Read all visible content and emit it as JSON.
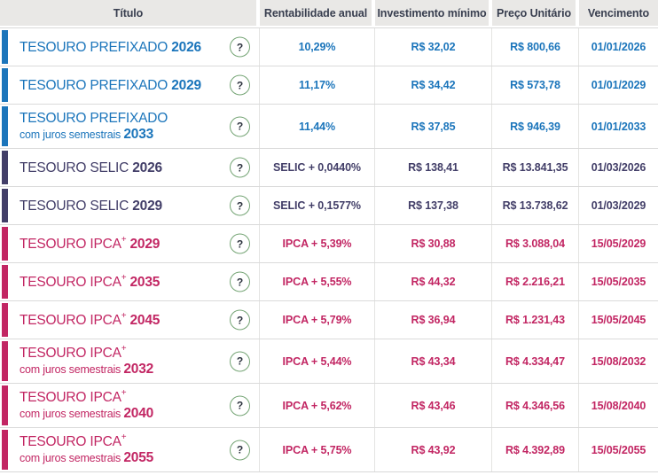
{
  "table": {
    "columns": [
      {
        "label": "Título"
      },
      {
        "label": "Rentabilidade anual"
      },
      {
        "label": "Investimento mínimo"
      },
      {
        "label": "Preço Unitário"
      },
      {
        "label": "Vencimento"
      }
    ],
    "rows": [
      {
        "theme": "prefixado",
        "name": "TESOURO PREFIXADO",
        "sup": "",
        "subtitle": "",
        "year": "2026",
        "rate": "10,29%",
        "min_investment": "R$ 32,02",
        "unit_price": "R$ 800,66",
        "maturity": "01/01/2026"
      },
      {
        "theme": "prefixado",
        "name": "TESOURO PREFIXADO",
        "sup": "",
        "subtitle": "",
        "year": "2029",
        "rate": "11,17%",
        "min_investment": "R$ 34,42",
        "unit_price": "R$ 573,78",
        "maturity": "01/01/2029"
      },
      {
        "theme": "prefixado",
        "name": "TESOURO PREFIXADO",
        "sup": "",
        "subtitle": "com juros semestrais",
        "year": "2033",
        "rate": "11,44%",
        "min_investment": "R$ 37,85",
        "unit_price": "R$ 946,39",
        "maturity": "01/01/2033"
      },
      {
        "theme": "selic",
        "name": "TESOURO SELIC",
        "sup": "",
        "subtitle": "",
        "year": "2026",
        "rate": "SELIC + 0,0440%",
        "min_investment": "R$ 138,41",
        "unit_price": "R$ 13.841,35",
        "maturity": "01/03/2026"
      },
      {
        "theme": "selic",
        "name": "TESOURO SELIC",
        "sup": "",
        "subtitle": "",
        "year": "2029",
        "rate": "SELIC + 0,1577%",
        "min_investment": "R$ 137,38",
        "unit_price": "R$ 13.738,62",
        "maturity": "01/03/2029"
      },
      {
        "theme": "ipca",
        "name": "TESOURO IPCA",
        "sup": "+",
        "subtitle": "",
        "year": "2029",
        "rate": "IPCA + 5,39%",
        "min_investment": "R$ 30,88",
        "unit_price": "R$ 3.088,04",
        "maturity": "15/05/2029"
      },
      {
        "theme": "ipca",
        "name": "TESOURO IPCA",
        "sup": "+",
        "subtitle": "",
        "year": "2035",
        "rate": "IPCA + 5,55%",
        "min_investment": "R$ 44,32",
        "unit_price": "R$ 2.216,21",
        "maturity": "15/05/2035"
      },
      {
        "theme": "ipca",
        "name": "TESOURO IPCA",
        "sup": "+",
        "subtitle": "",
        "year": "2045",
        "rate": "IPCA + 5,79%",
        "min_investment": "R$ 36,94",
        "unit_price": "R$ 1.231,43",
        "maturity": "15/05/2045"
      },
      {
        "theme": "ipca",
        "name": "TESOURO IPCA",
        "sup": "+",
        "subtitle": "com juros semestrais",
        "year": "2032",
        "rate": "IPCA + 5,44%",
        "min_investment": "R$ 43,34",
        "unit_price": "R$ 4.334,47",
        "maturity": "15/08/2032"
      },
      {
        "theme": "ipca",
        "name": "TESOURO IPCA",
        "sup": "+",
        "subtitle": "com juros semestrais",
        "year": "2040",
        "rate": "IPCA + 5,62%",
        "min_investment": "R$ 43,46",
        "unit_price": "R$ 4.346,56",
        "maturity": "15/08/2040"
      },
      {
        "theme": "ipca",
        "name": "TESOURO IPCA",
        "sup": "+",
        "subtitle": "com juros semestrais",
        "year": "2055",
        "rate": "IPCA + 5,75%",
        "min_investment": "R$ 43,92",
        "unit_price": "R$ 4.392,89",
        "maturity": "15/05/2055"
      }
    ]
  },
  "icons": {
    "help": "?"
  },
  "colors": {
    "prefixado": "#1b75bb",
    "selic": "#423e68",
    "ipca": "#c22663",
    "header_bg": "#e9e8e6",
    "help_border": "#74a474"
  }
}
